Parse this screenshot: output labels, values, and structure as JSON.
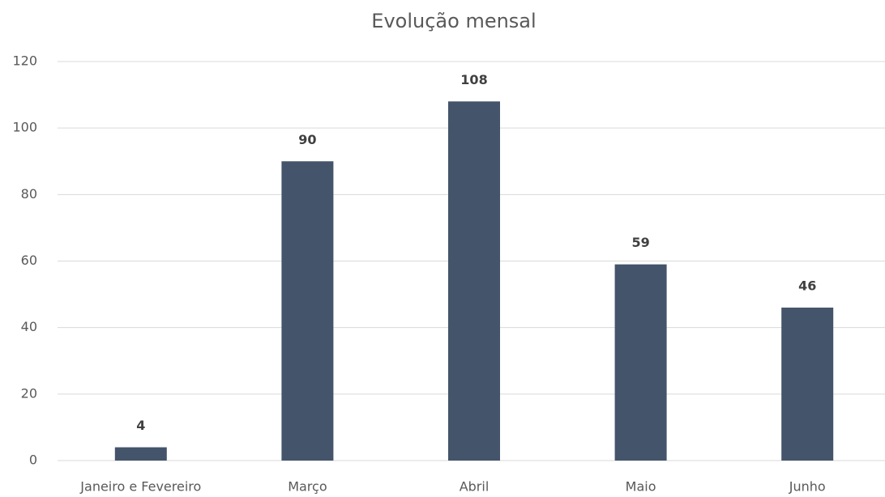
{
  "chart_data": {
    "type": "bar",
    "title": "Evolução mensal",
    "categories": [
      "Janeiro e Fevereiro",
      "Março",
      "Abril",
      "Maio",
      "Junho"
    ],
    "values": [
      4,
      90,
      108,
      59,
      46
    ],
    "color": "#44546a",
    "ylim": [
      0,
      120
    ],
    "yticks": [
      0,
      20,
      40,
      60,
      80,
      100,
      120
    ],
    "grid": true
  }
}
